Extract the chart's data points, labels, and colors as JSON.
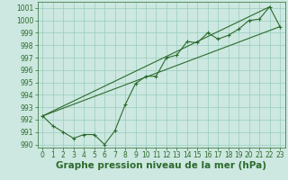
{
  "x": [
    0,
    1,
    2,
    3,
    4,
    5,
    6,
    7,
    8,
    9,
    10,
    11,
    12,
    13,
    14,
    15,
    16,
    17,
    18,
    19,
    20,
    21,
    22,
    23
  ],
  "y_main": [
    992.3,
    991.5,
    991.0,
    990.5,
    990.8,
    990.8,
    990.0,
    991.1,
    993.2,
    994.9,
    995.5,
    995.5,
    997.0,
    997.2,
    998.3,
    998.2,
    999.0,
    998.5,
    998.8,
    999.3,
    1000.0,
    1000.1,
    1001.1,
    999.5
  ],
  "trend1_x": [
    0,
    23
  ],
  "trend1_y": [
    992.3,
    999.5
  ],
  "trend2_x": [
    0,
    22
  ],
  "trend2_y": [
    992.3,
    1001.1
  ],
  "ylim": [
    989.75,
    1001.5
  ],
  "yticks": [
    990,
    991,
    992,
    993,
    994,
    995,
    996,
    997,
    998,
    999,
    1000,
    1001
  ],
  "xlim": [
    -0.5,
    23.5
  ],
  "xticks": [
    0,
    1,
    2,
    3,
    4,
    5,
    6,
    7,
    8,
    9,
    10,
    11,
    12,
    13,
    14,
    15,
    16,
    17,
    18,
    19,
    20,
    21,
    22,
    23
  ],
  "xlabel": "Graphe pression niveau de la mer (hPa)",
  "line_color": "#2d6a2d",
  "bg_color": "#cce8e0",
  "grid_color": "#99ccc0",
  "tick_fontsize": 5.5,
  "xlabel_fontsize": 7.5
}
